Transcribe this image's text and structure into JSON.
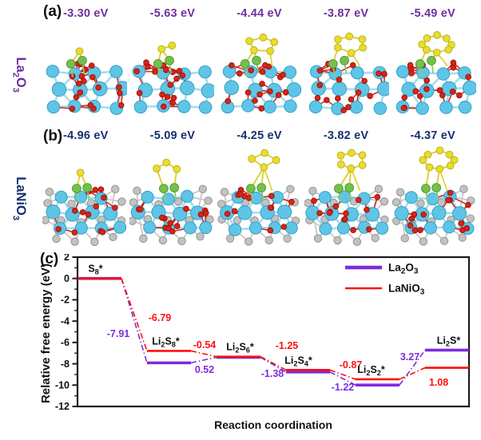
{
  "figure": {
    "background": "#FFFFFF"
  },
  "atom_colors": {
    "La": "#5EC5E6",
    "La_stroke": "#2F9DC2",
    "La_bond": "#A9DCEE",
    "O": "#D62418",
    "O_stroke": "#9C140B",
    "S": "#E8DD2E",
    "S_stroke": "#B9AD12",
    "S_bond": "#DCD028",
    "Li": "#74C04E",
    "Li_stroke": "#4E9A2C",
    "Li_bond": "#8FCA74",
    "Ni": "#C2C2C2",
    "Ni_stroke": "#8E8E8E",
    "Ni_bond": "#C9C9C9"
  },
  "panels": [
    {
      "tag": "(a)",
      "material": "La2O3",
      "color": "#7030A0",
      "energies": [
        "-3.30 eV",
        "-5.63 eV",
        "-4.44 eV",
        "-3.87 eV",
        "-5.49 eV"
      ],
      "structures": [
        {
          "li": 2,
          "s": 1
        },
        {
          "li": 2,
          "s": 2
        },
        {
          "li": 2,
          "s": 5
        },
        {
          "li": 2,
          "s": 6
        },
        {
          "li": 2,
          "s": 8
        }
      ]
    },
    {
      "tag": "(b)",
      "material": "LaNiO3",
      "color": "#17306E",
      "energies": [
        "-4.96 eV",
        "-5.09 eV",
        "-4.25 eV",
        "-3.82 eV",
        "-4.37 eV"
      ],
      "structures": [
        {
          "li": 2,
          "s": 1
        },
        {
          "li": 2,
          "s": 3
        },
        {
          "li": 2,
          "s": 4
        },
        {
          "li": 2,
          "s": 6
        },
        {
          "li": 2,
          "s": 8
        }
      ]
    }
  ],
  "panel_c": {
    "tag": "(c)"
  },
  "chart_data": {
    "type": "line",
    "subtype": "reaction-free-energy-steps",
    "title": "",
    "xlabel": "Reaction coordination",
    "ylabel": "Relative free energy (eV)",
    "ylim": [
      -12,
      2
    ],
    "yticks": [
      2,
      0,
      -2,
      -4,
      -6,
      -8,
      -10,
      -12
    ],
    "grid": false,
    "legend_position": "top-right",
    "frame_color": "#1A1A1A",
    "species": [
      "S8*",
      "Li2S8*",
      "Li2S6*",
      "Li2S4*",
      "Li2S2*",
      "Li2S*"
    ],
    "series": [
      {
        "name": "La2O3",
        "color": "#7E2BDC",
        "levels": [
          0,
          -7.91,
          -7.39,
          -8.77,
          -9.99,
          -6.72
        ],
        "step_labels": [
          "-7.91",
          "0.52",
          "-1.38",
          "-1.22",
          "3.27"
        ]
      },
      {
        "name": "LaNiO3",
        "color": "#FF0E0E",
        "levels": [
          0,
          -6.79,
          -7.33,
          -8.58,
          -9.45,
          -8.37
        ],
        "step_labels": [
          "-6.79",
          "-0.54",
          "-1.25",
          "-0.87",
          "1.08"
        ]
      }
    ]
  }
}
